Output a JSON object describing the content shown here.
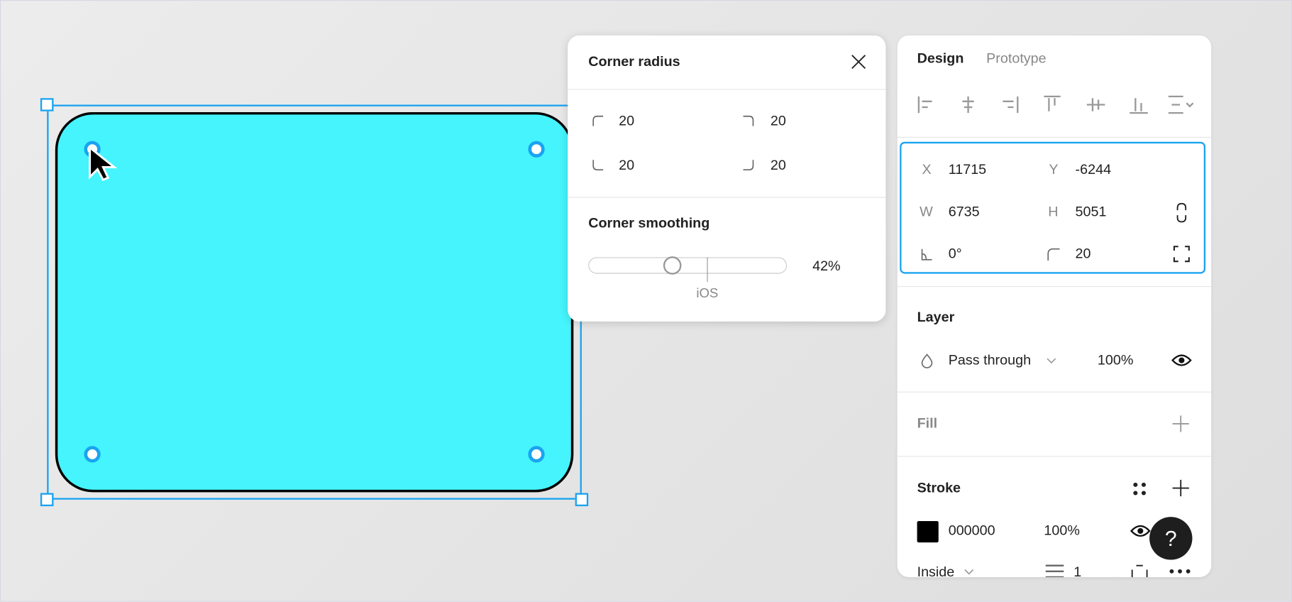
{
  "colors": {
    "accent": "#1aa3f0",
    "shape_fill": "#45f4fc",
    "shape_stroke": "#000000"
  },
  "corner_popover": {
    "title": "Corner radius",
    "top_left": "20",
    "top_right": "20",
    "bottom_left": "20",
    "bottom_right": "20",
    "smoothing_title": "Corner smoothing",
    "smoothing_percent": 42,
    "smoothing_value": "42%",
    "ios_label": "iOS"
  },
  "panel": {
    "tabs": [
      {
        "label": "Design",
        "active": true
      },
      {
        "label": "Prototype",
        "active": false
      }
    ],
    "align_icons": [
      "align-left-icon",
      "align-horizontal-center-icon",
      "align-right-icon",
      "align-top-icon",
      "align-vertical-center-icon",
      "align-bottom-icon",
      "distribute-icon"
    ],
    "position": {
      "x_label": "X",
      "x": "11715",
      "y_label": "Y",
      "y": "-6244",
      "w_label": "W",
      "w": "6735",
      "h_label": "H",
      "h": "5051",
      "rotation": "0°",
      "radius": "20"
    },
    "layer": {
      "title": "Layer",
      "blend": "Pass through",
      "opacity": "100%"
    },
    "fill": {
      "title": "Fill"
    },
    "stroke": {
      "title": "Stroke",
      "color": "000000",
      "opacity": "100%",
      "position": "Inside",
      "weight": "1"
    }
  },
  "help": {
    "label": "?"
  }
}
